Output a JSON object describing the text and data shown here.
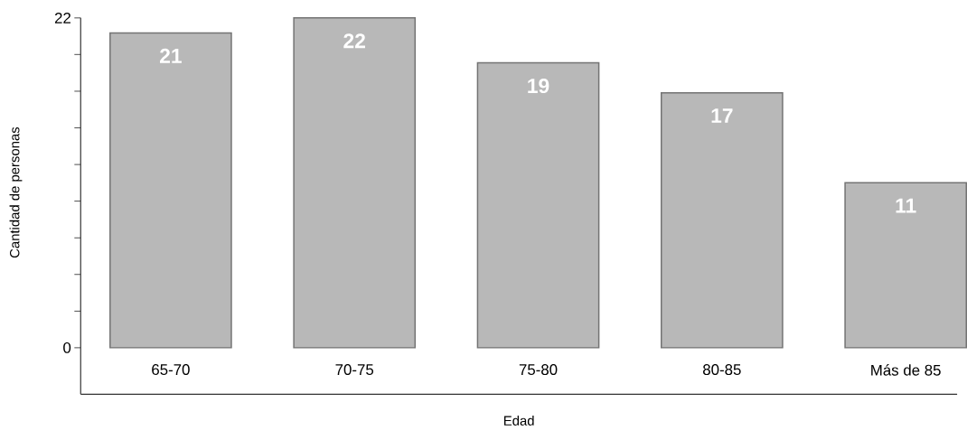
{
  "chart_data": {
    "type": "bar",
    "xlabel": "Edad",
    "ylabel": "Cantidad de personas",
    "categories": [
      "65-70",
      "70-75",
      "75-80",
      "80-85",
      "Más de 85"
    ],
    "values": [
      21,
      22,
      19,
      17,
      11
    ],
    "color": "#b8b8b8",
    "data_labels": true,
    "ylim": [
      -3.1,
      22
    ],
    "yticks": [
      0,
      {
        "value": 2.44,
        "label": null
      },
      {
        "value": 4.89,
        "label": null
      },
      {
        "value": 7.33,
        "label": null
      },
      {
        "value": 9.78,
        "label": null
      },
      {
        "value": 12.22,
        "label": null
      },
      {
        "value": 14.67,
        "label": null
      },
      {
        "value": 17.11,
        "label": null
      },
      {
        "value": 19.56,
        "label": null
      },
      22
    ],
    "grid": false
  }
}
